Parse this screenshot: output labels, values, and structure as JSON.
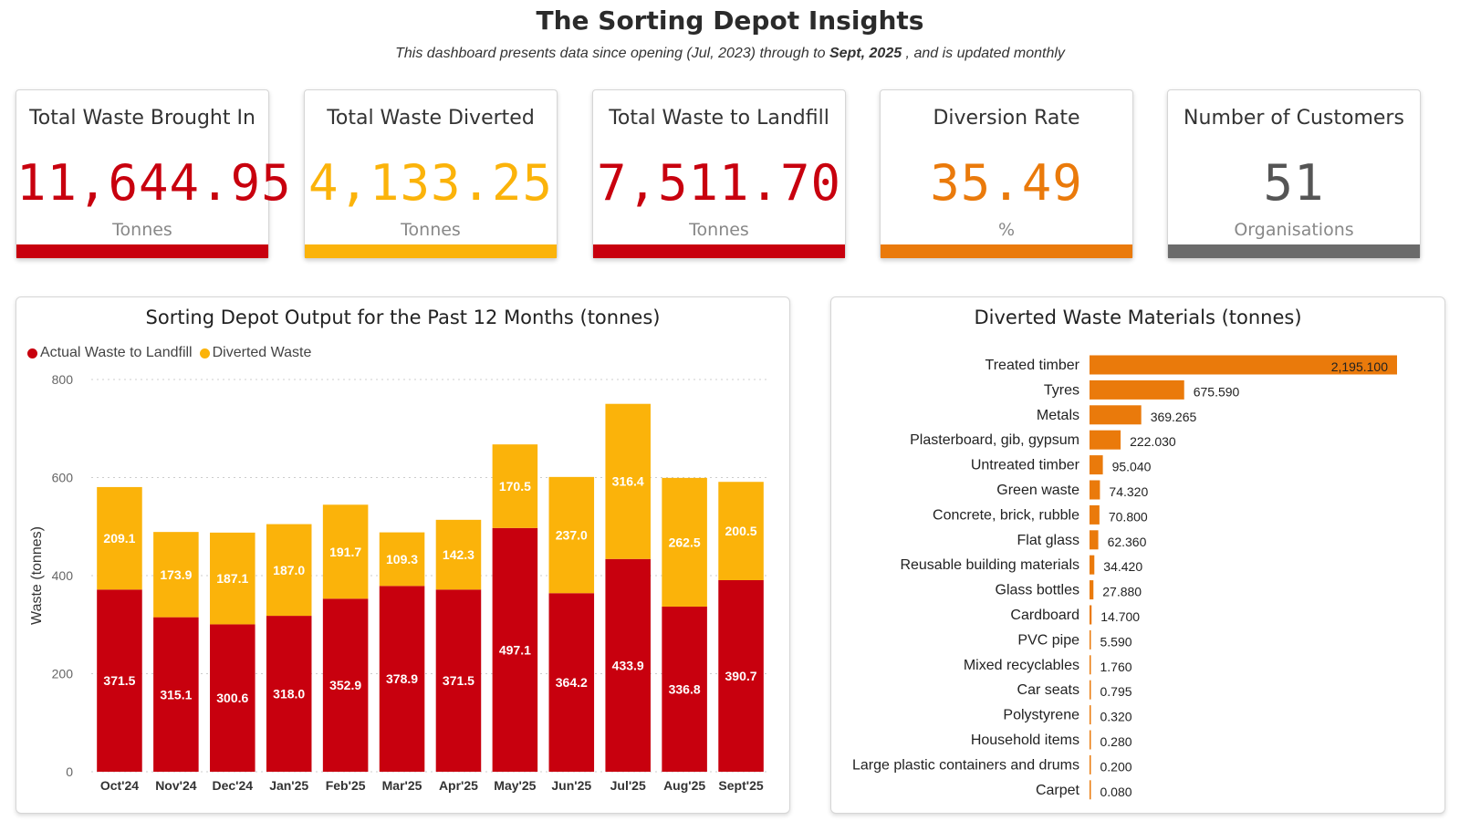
{
  "header": {
    "title": "The Sorting Depot Insights",
    "subtitle_pre": "This dashboard presents data since opening (Jul, 2023) through to ",
    "subtitle_bold": "Sept, 2025",
    "subtitle_post": " , and is updated monthly"
  },
  "kpis": [
    {
      "title": "Total Waste Brought In",
      "value": "11,644.95",
      "unit": "Tonnes",
      "color": "#c8000e",
      "bar_color": "#c8000e"
    },
    {
      "title": "Total Waste Diverted",
      "value": "4,133.25",
      "unit": "Tonnes",
      "color": "#fbb30a",
      "bar_color": "#fbb30a"
    },
    {
      "title": "Total Waste to Landfill",
      "value": "7,511.70",
      "unit": "Tonnes",
      "color": "#c8000e",
      "bar_color": "#c8000e"
    },
    {
      "title": "Diversion Rate",
      "value": "35.49",
      "unit": "%",
      "color": "#ea7a0b",
      "bar_color": "#ea7a0b"
    },
    {
      "title": "Number of Customers",
      "value": "51",
      "unit": "Organisations",
      "color": "#555555",
      "bar_color": "#6b6b6b"
    }
  ],
  "chart_data": [
    {
      "type": "bar",
      "stacked": true,
      "title": "Sorting Depot Output for the Past 12 Months (tonnes)",
      "ylabel": "Waste (tonnes)",
      "xlabel": "",
      "ylim": [
        0,
        800
      ],
      "yticks": [
        0,
        200,
        400,
        600,
        800
      ],
      "grid": true,
      "legend": "top-left",
      "categories": [
        "Oct'24",
        "Nov'24",
        "Dec'24",
        "Jan'25",
        "Feb'25",
        "Mar'25",
        "Apr'25",
        "May'25",
        "Jun'25",
        "Jul'25",
        "Aug'25",
        "Sept'25"
      ],
      "series": [
        {
          "name": "Actual Waste to Landfill",
          "color": "#c8000e",
          "values": [
            371.5,
            315.1,
            300.6,
            318.0,
            352.9,
            378.9,
            371.5,
            497.1,
            364.2,
            433.9,
            336.8,
            390.7
          ]
        },
        {
          "name": "Diverted Waste",
          "color": "#fbb30a",
          "values": [
            209.1,
            173.9,
            187.1,
            187.0,
            191.7,
            109.3,
            142.3,
            170.5,
            237.0,
            316.4,
            262.5,
            200.5
          ]
        }
      ]
    },
    {
      "type": "bar",
      "orientation": "horizontal",
      "title": "Diverted Waste Materials (tonnes)",
      "color": "#ea7a0b",
      "categories": [
        "Treated timber",
        "Tyres",
        "Metals",
        "Plasterboard, gib, gypsum",
        "Untreated timber",
        "Green waste",
        "Concrete, brick, rubble",
        "Flat glass",
        "Reusable building materials",
        "Glass bottles",
        "Cardboard",
        "PVC pipe",
        "Mixed recyclables",
        "Car seats",
        "Polystyrene",
        "Household items",
        "Large plastic containers and drums",
        "Carpet"
      ],
      "values": [
        2195.1,
        675.59,
        369.265,
        222.03,
        95.04,
        74.32,
        70.8,
        62.36,
        34.42,
        27.88,
        14.7,
        5.59,
        1.76,
        0.795,
        0.32,
        0.28,
        0.2,
        0.08
      ],
      "labels": [
        "2,195.100",
        "675.590",
        "369.265",
        "222.030",
        "95.040",
        "74.320",
        "70.800",
        "62.360",
        "34.420",
        "27.880",
        "14.700",
        "5.590",
        "1.760",
        "0.795",
        "0.320",
        "0.280",
        "0.200",
        "0.080"
      ]
    }
  ]
}
